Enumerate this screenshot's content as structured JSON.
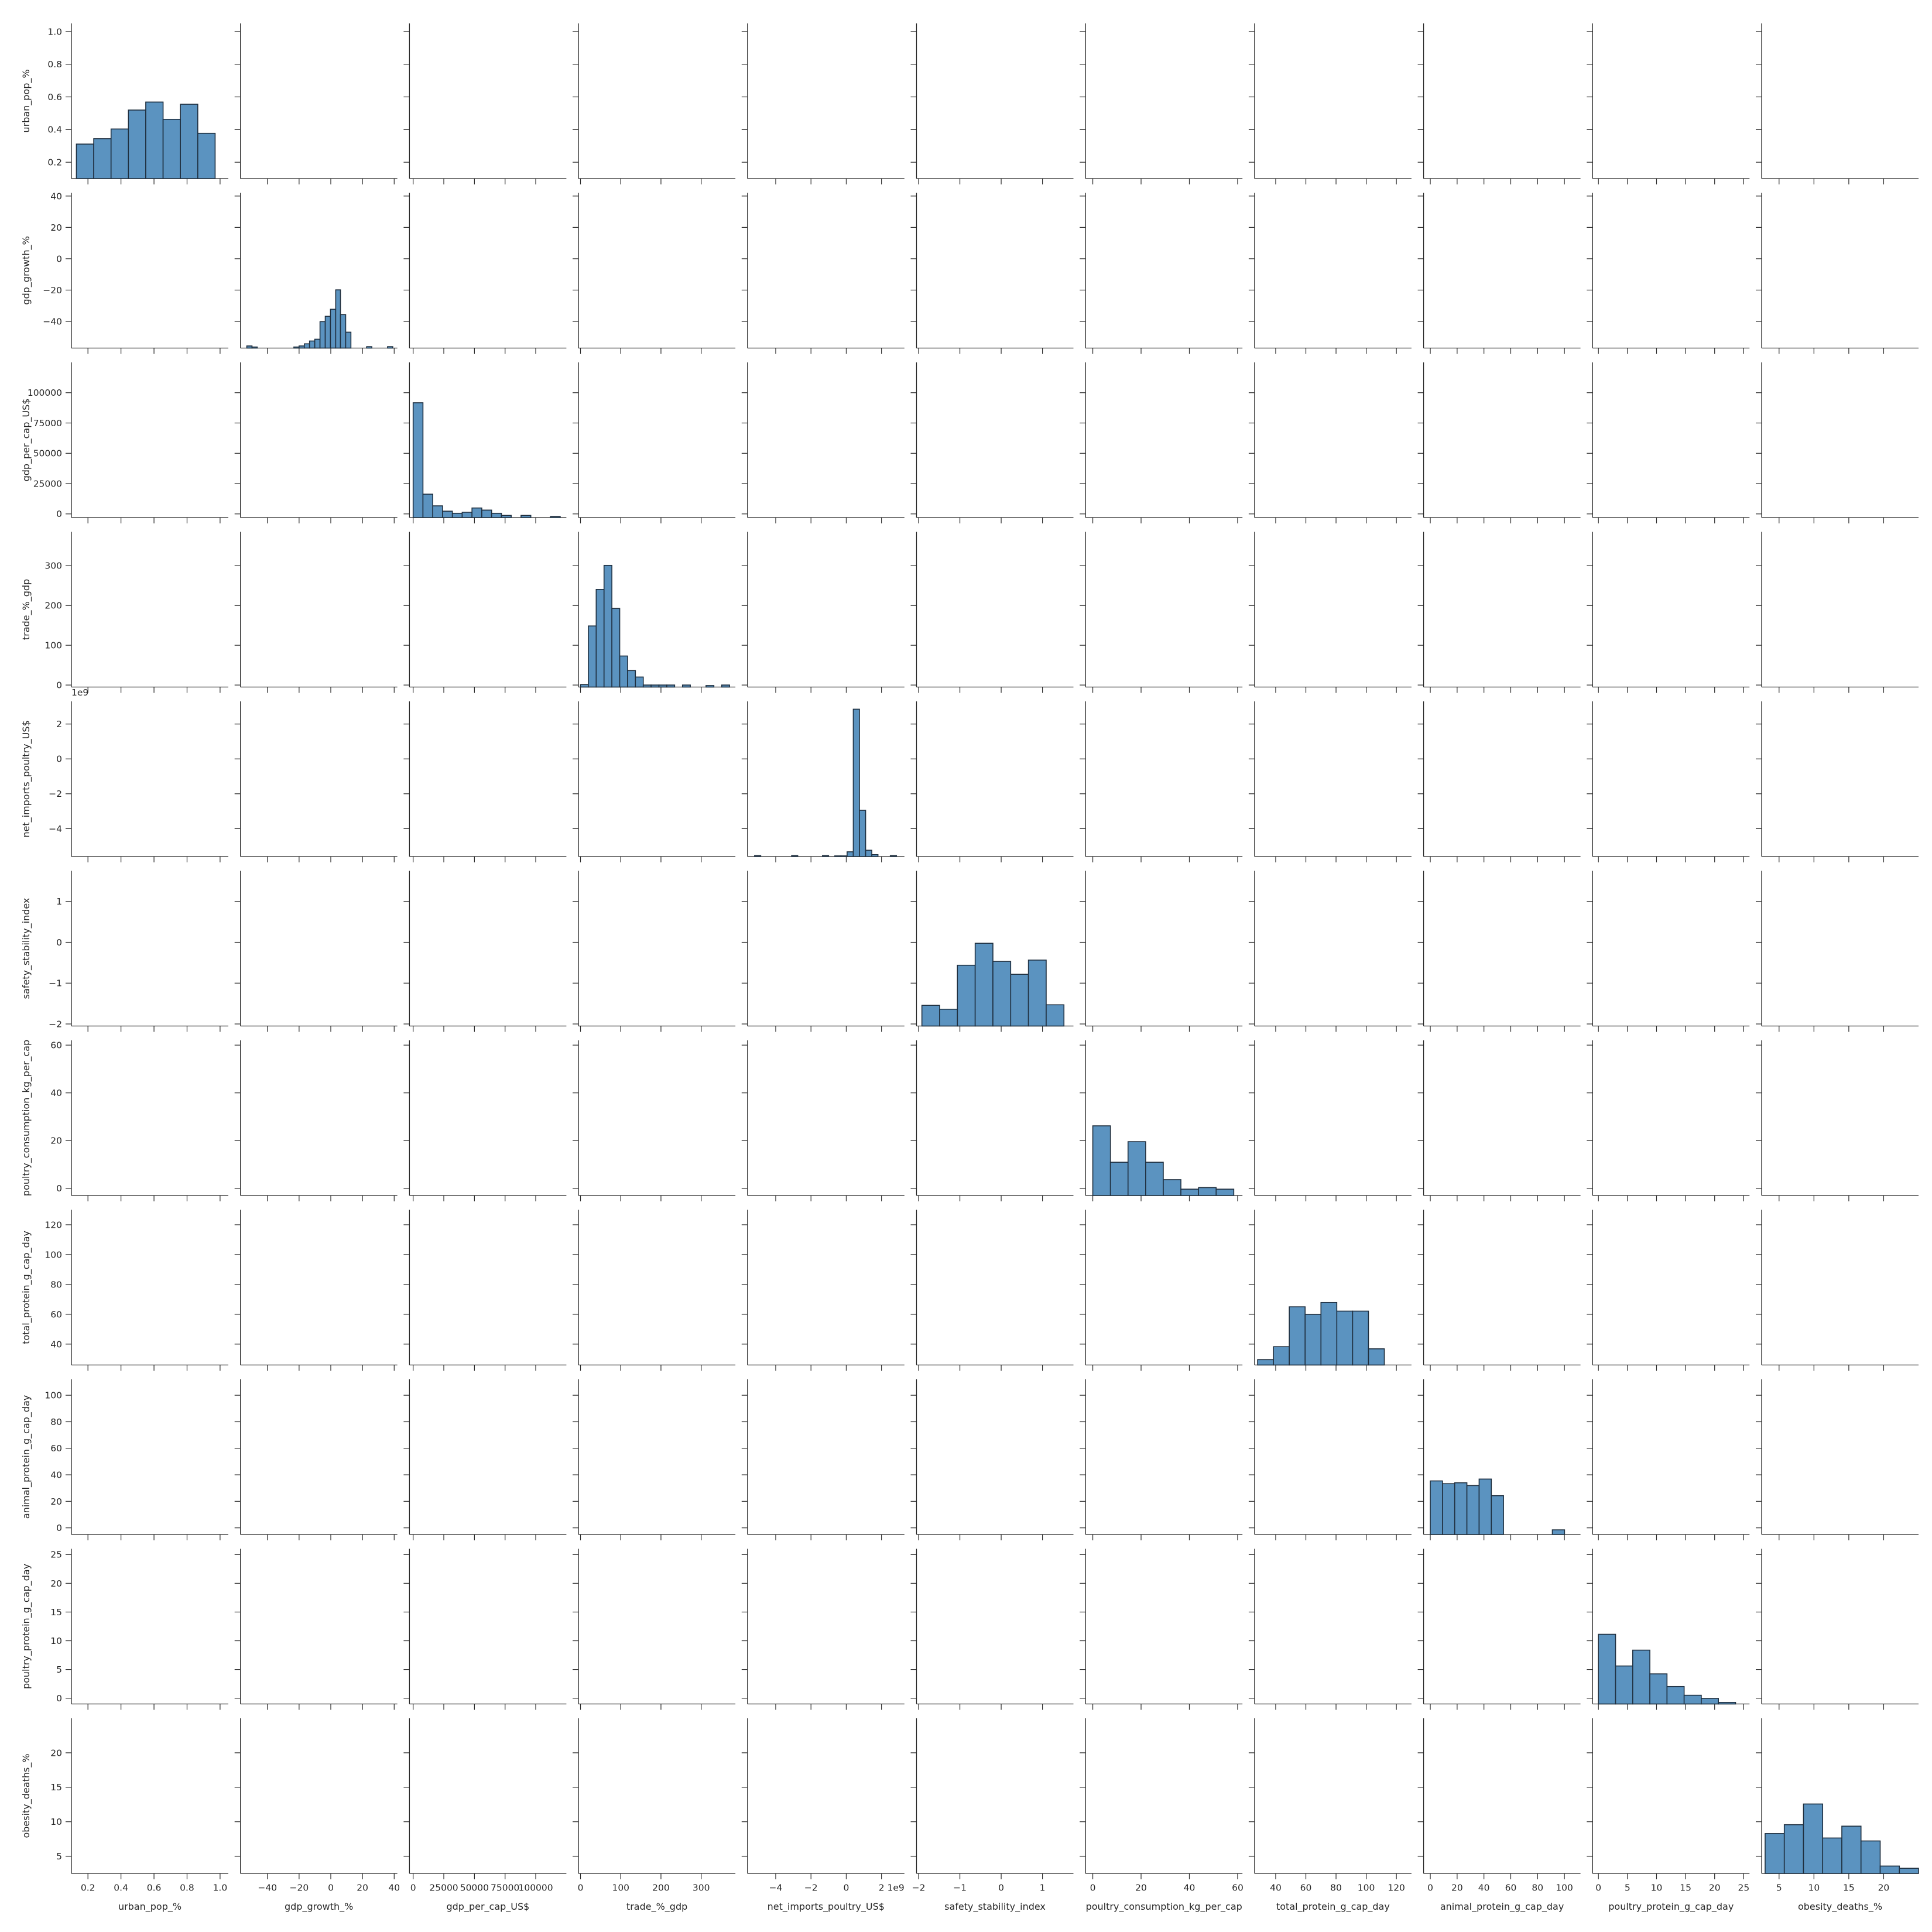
{
  "chart_data": {
    "type": "pairplot",
    "diag_kind": "histogram",
    "bar_color": "#5b93c0",
    "edge_color": "#1f2f3f",
    "variables": [
      {
        "name": "urban_pop_%",
        "range": [
          0.1,
          1.05
        ],
        "ticks": [
          0.2,
          0.4,
          0.6,
          0.8,
          1.0
        ],
        "tick_labels": [
          "0.2",
          "0.4",
          "0.6",
          "0.8",
          "1.0"
        ],
        "bins": [
          0.13,
          0.235,
          0.34,
          0.445,
          0.55,
          0.655,
          0.76,
          0.865,
          0.97
        ],
        "hist": [
          0.16,
          0.185,
          0.23,
          0.318,
          0.355,
          0.275,
          0.345,
          0.21
        ],
        "hist_ylim": [
          0,
          0.72
        ]
      },
      {
        "name": "gdp_growth_%",
        "range": [
          -57,
          42
        ],
        "ticks": [
          -40,
          -20,
          0,
          20,
          40
        ],
        "tick_labels": [
          "−40",
          "−20",
          "0",
          "20",
          "40"
        ],
        "bins": [
          -53,
          -49.7,
          -46.4,
          -43.1,
          -39.8,
          -36.5,
          -33.2,
          -29.9,
          -26.6,
          -23.3,
          -20,
          -16.7,
          -13.4,
          -10.1,
          -6.8,
          -3.5,
          -0.2,
          3.1,
          6.1,
          9.4,
          12.7,
          16,
          19.3,
          22.6,
          25.9,
          29.2,
          32.5,
          35.8,
          39.1
        ],
        "hist": [
          0.006,
          0.003,
          0,
          0,
          0,
          0,
          0,
          0,
          0,
          0.003,
          0.006,
          0.012,
          0.02,
          0.025,
          0.075,
          0.09,
          0.11,
          0.165,
          0.095,
          0.045,
          0,
          0,
          0,
          0.004,
          0,
          0,
          0,
          0.004
        ],
        "hist_ylim": [
          0,
          0.44
        ]
      },
      {
        "name": "gdp_per_cap_US$",
        "range": [
          -3000,
          125000
        ],
        "ticks": [
          0,
          25000,
          50000,
          75000,
          100000
        ],
        "tick_labels": [
          "0",
          "25000",
          "50000",
          "75000",
          "100000"
        ],
        "bins": [
          0,
          8000,
          16000,
          24000,
          32000,
          40000,
          48000,
          56000,
          64000,
          72000,
          80000,
          88000,
          96000,
          104000,
          112000,
          120000
        ],
        "hist": [
          0.54,
          0.11,
          0.055,
          0.03,
          0.02,
          0.025,
          0.045,
          0.035,
          0.02,
          0.01,
          0,
          0.01,
          0,
          0,
          0.005
        ],
        "hist_ylim": [
          0,
          0.73
        ]
      },
      {
        "name": "trade_%_gdp",
        "range": [
          -5,
          385
        ],
        "ticks": [
          0,
          100,
          200,
          300
        ],
        "tick_labels": [
          "0",
          "100",
          "200",
          "300"
        ],
        "bins": [
          0,
          19.5,
          39,
          58.5,
          78,
          97.5,
          117,
          136.5,
          156,
          175.5,
          195,
          214.5,
          234,
          253.5,
          273,
          292.5,
          312,
          331.5,
          351,
          370.5
        ],
        "hist": [
          0.005,
          0.122,
          0.195,
          0.243,
          0.157,
          0.062,
          0.033,
          0.02,
          0.004,
          0.004,
          0.004,
          0.004,
          0,
          0.004,
          0,
          0,
          0.003,
          0,
          0.004
        ],
        "hist_ylim": [
          0,
          0.31
        ]
      },
      {
        "name": "net_imports_poultry_US$",
        "range": [
          -5600000000.0,
          3300000000.0
        ],
        "ticks": [
          -4000000000.0,
          -2000000000.0,
          0,
          2000000000.0
        ],
        "tick_labels": [
          "−4",
          "−2",
          "0",
          "2"
        ],
        "offset_label": "1e9",
        "bins": [
          -5200000000.0,
          -4850000000.0,
          -4500000000.0,
          -4150000000.0,
          -3800000000.0,
          -3450000000.0,
          -3100000000.0,
          -2750000000.0,
          -2400000000.0,
          -2050000000.0,
          -1700000000.0,
          -1350000000.0,
          -1000000000.0,
          -650000000.0,
          -300000000.0,
          50000000.0,
          400000000.0,
          750000000.0,
          1100000000.0,
          1450000000.0,
          1800000000.0,
          2150000000.0,
          2500000000.0,
          2850000000.0
        ],
        "hist": [
          0.006,
          0,
          0,
          0,
          0,
          0,
          0.006,
          0,
          0,
          0,
          0,
          0.006,
          0,
          0.004,
          0.004,
          0.03,
          0.94,
          0.295,
          0.04,
          0.012,
          0,
          0,
          0.006
        ],
        "hist_ylim": [
          0,
          0.99
        ]
      },
      {
        "name": "safety_stability_index",
        "range": [
          -2.05,
          1.75
        ],
        "ticks": [
          -2,
          -1,
          0,
          1
        ],
        "tick_labels": [
          "−2",
          "−1",
          "0",
          "1"
        ],
        "bins": [
          -1.92,
          -1.49,
          -1.06,
          -0.63,
          -0.2,
          0.23,
          0.66,
          1.09,
          1.52
        ],
        "hist": [
          0.08,
          0.065,
          0.235,
          0.32,
          0.25,
          0.2,
          0.255,
          0.082
        ],
        "hist_ylim": [
          0,
          0.6
        ]
      },
      {
        "name": "poultry_consumption_kg_per_cap",
        "range": [
          -3,
          62
        ],
        "ticks": [
          0,
          20,
          40,
          60
        ],
        "tick_labels": [
          "0",
          "20",
          "40",
          "60"
        ],
        "bins": [
          0,
          7.3,
          14.6,
          21.9,
          29.2,
          36.5,
          43.8,
          51.1,
          58.4
        ],
        "hist": [
          0.44,
          0.21,
          0.34,
          0.21,
          0.1,
          0.04,
          0.05,
          0.04
        ],
        "hist_ylim": [
          0,
          0.98
        ]
      },
      {
        "name": "total_protein_g_cap_day",
        "range": [
          26,
          130
        ],
        "ticks": [
          40,
          60,
          80,
          100,
          120
        ],
        "tick_labels": [
          "40",
          "60",
          "80",
          "100",
          "120"
        ],
        "bins": [
          28,
          38.5,
          49,
          59.5,
          70,
          80.5,
          91,
          101.5,
          112,
          122.5
        ],
        "hist": [
          0.025,
          0.085,
          0.27,
          0.235,
          0.29,
          0.25,
          0.25,
          0.075,
          0
        ],
        "hist_ylim": [
          0,
          0.72
        ]
      },
      {
        "name": "animal_protein_g_cap_day",
        "range": [
          -5,
          112
        ],
        "ticks": [
          0,
          20,
          40,
          60,
          80,
          100
        ],
        "tick_labels": [
          "0",
          "20",
          "40",
          "60",
          "80",
          "100"
        ],
        "bins": [
          0,
          9.1,
          18.2,
          27.3,
          36.4,
          45.5,
          54.6,
          63.7,
          72.8,
          81.9,
          91,
          100.1
        ],
        "hist": [
          0.29,
          0.275,
          0.28,
          0.265,
          0.3,
          0.21,
          0.0,
          0.0,
          0.0,
          0.0,
          0.025
        ],
        "hist_ylim": [
          0,
          0.84
        ]
      },
      {
        "name": "poultry_protein_g_cap_day",
        "range": [
          -1,
          26
        ],
        "ticks": [
          0,
          5,
          10,
          15,
          20,
          25
        ],
        "tick_labels": [
          "0",
          "5",
          "10",
          "15",
          "20",
          "25"
        ],
        "bins": [
          0,
          2.95,
          5.9,
          8.85,
          11.8,
          14.75,
          17.7,
          20.65,
          23.6
        ],
        "hist": [
          0.44,
          0.24,
          0.34,
          0.19,
          0.11,
          0.055,
          0.035,
          0.01
        ],
        "hist_ylim": [
          0,
          0.98
        ]
      },
      {
        "name": "obesity_deaths_%",
        "range": [
          2.5,
          25
        ],
        "ticks": [
          5,
          10,
          15,
          20
        ],
        "tick_labels": [
          "5",
          "10",
          "15",
          "20"
        ],
        "bins": [
          3,
          5.75,
          8.5,
          11.25,
          14,
          16.75,
          19.5,
          22.25,
          25
        ],
        "hist": [
          0.27,
          0.33,
          0.47,
          0.24,
          0.32,
          0.22,
          0.05,
          0.035
        ],
        "hist_ylim": [
          0,
          1.05
        ]
      }
    ]
  }
}
